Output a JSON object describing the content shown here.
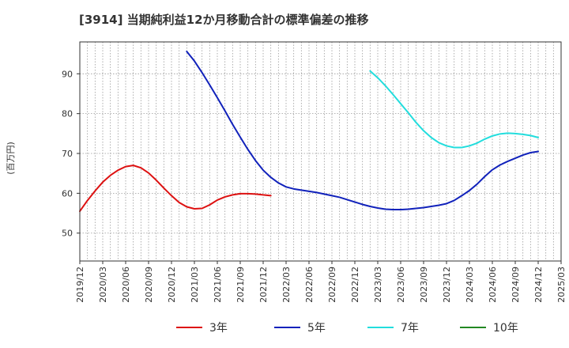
{
  "chart_data": {
    "type": "line",
    "title": "[3914]  当期純利益12か月移動合計の標準偏差の推移",
    "ylabel": "(百万円)",
    "xlabel": "",
    "ylim": [
      43,
      98
    ],
    "yticks": [
      50,
      60,
      70,
      80,
      90
    ],
    "xlim": [
      "2019-12",
      "2025-03"
    ],
    "xticks": [
      "2019/12",
      "2020/03",
      "2020/06",
      "2020/09",
      "2020/12",
      "2021/03",
      "2021/06",
      "2021/09",
      "2021/12",
      "2022/03",
      "2022/06",
      "2022/09",
      "2022/12",
      "2023/03",
      "2023/06",
      "2023/09",
      "2023/12",
      "2024/03",
      "2024/06",
      "2024/09",
      "2024/12",
      "2025/03"
    ],
    "grid": true,
    "legend_position": "bottom",
    "series": [
      {
        "name": "3年",
        "color": "#dd1111",
        "points": [
          [
            "2019-12",
            55.5
          ],
          [
            "2020-01",
            58.2
          ],
          [
            "2020-02",
            60.6
          ],
          [
            "2020-03",
            62.8
          ],
          [
            "2020-04",
            64.5
          ],
          [
            "2020-05",
            65.8
          ],
          [
            "2020-06",
            66.7
          ],
          [
            "2020-07",
            67.0
          ],
          [
            "2020-08",
            66.4
          ],
          [
            "2020-09",
            65.1
          ],
          [
            "2020-10",
            63.3
          ],
          [
            "2020-11",
            61.3
          ],
          [
            "2020-12",
            59.4
          ],
          [
            "2021-01",
            57.7
          ],
          [
            "2021-02",
            56.6
          ],
          [
            "2021-03",
            56.1
          ],
          [
            "2021-04",
            56.2
          ],
          [
            "2021-05",
            57.1
          ],
          [
            "2021-06",
            58.3
          ],
          [
            "2021-07",
            59.1
          ],
          [
            "2021-08",
            59.6
          ],
          [
            "2021-09",
            59.9
          ],
          [
            "2021-10",
            59.9
          ],
          [
            "2021-11",
            59.8
          ],
          [
            "2021-12",
            59.6
          ],
          [
            "2021-13",
            59.4
          ]
        ]
      },
      {
        "name": "5年",
        "color": "#1122bb",
        "points": [
          [
            "2021-02",
            95.6
          ],
          [
            "2021-03",
            93.2
          ],
          [
            "2021-04",
            90.3
          ],
          [
            "2021-05",
            87.2
          ],
          [
            "2021-06",
            84.0
          ],
          [
            "2021-07",
            80.7
          ],
          [
            "2021-08",
            77.3
          ],
          [
            "2021-09",
            74.1
          ],
          [
            "2021-10",
            71.0
          ],
          [
            "2021-11",
            68.2
          ],
          [
            "2021-12",
            65.8
          ],
          [
            "2022-01",
            64.0
          ],
          [
            "2022-02",
            62.6
          ],
          [
            "2022-03",
            61.6
          ],
          [
            "2022-04",
            61.1
          ],
          [
            "2022-05",
            60.8
          ],
          [
            "2022-06",
            60.5
          ],
          [
            "2022-07",
            60.2
          ],
          [
            "2022-08",
            59.8
          ],
          [
            "2022-09",
            59.4
          ],
          [
            "2022-10",
            59.0
          ],
          [
            "2022-11",
            58.4
          ],
          [
            "2022-12",
            57.8
          ],
          [
            "2023-01",
            57.2
          ],
          [
            "2023-02",
            56.7
          ],
          [
            "2023-03",
            56.3
          ],
          [
            "2023-04",
            56.0
          ],
          [
            "2023-05",
            55.9
          ],
          [
            "2023-06",
            55.9
          ],
          [
            "2023-07",
            56.0
          ],
          [
            "2023-08",
            56.2
          ],
          [
            "2023-09",
            56.4
          ],
          [
            "2023-10",
            56.7
          ],
          [
            "2023-11",
            57.0
          ],
          [
            "2023-12",
            57.4
          ],
          [
            "2024-01",
            58.2
          ],
          [
            "2024-02",
            59.4
          ],
          [
            "2024-03",
            60.7
          ],
          [
            "2024-04",
            62.3
          ],
          [
            "2024-05",
            64.2
          ],
          [
            "2024-06",
            65.9
          ],
          [
            "2024-07",
            67.1
          ],
          [
            "2024-08",
            68.0
          ],
          [
            "2024-09",
            68.8
          ],
          [
            "2024-10",
            69.6
          ],
          [
            "2024-11",
            70.2
          ],
          [
            "2024-12",
            70.5
          ]
        ]
      },
      {
        "name": "7年",
        "color": "#22dddd",
        "points": [
          [
            "2023-02",
            90.7
          ],
          [
            "2023-03",
            89.0
          ],
          [
            "2023-04",
            87.0
          ],
          [
            "2023-05",
            84.8
          ],
          [
            "2023-06",
            82.5
          ],
          [
            "2023-07",
            80.2
          ],
          [
            "2023-08",
            77.8
          ],
          [
            "2023-09",
            75.7
          ],
          [
            "2023-10",
            74.0
          ],
          [
            "2023-11",
            72.7
          ],
          [
            "2023-12",
            71.9
          ],
          [
            "2024-01",
            71.5
          ],
          [
            "2024-02",
            71.5
          ],
          [
            "2024-03",
            71.9
          ],
          [
            "2024-04",
            72.6
          ],
          [
            "2024-05",
            73.6
          ],
          [
            "2024-06",
            74.4
          ],
          [
            "2024-07",
            74.9
          ],
          [
            "2024-08",
            75.1
          ],
          [
            "2024-09",
            75.0
          ],
          [
            "2024-10",
            74.8
          ],
          [
            "2024-11",
            74.5
          ],
          [
            "2024-12",
            74.0
          ]
        ]
      },
      {
        "name": "10年",
        "color": "#228822",
        "points": []
      }
    ]
  }
}
